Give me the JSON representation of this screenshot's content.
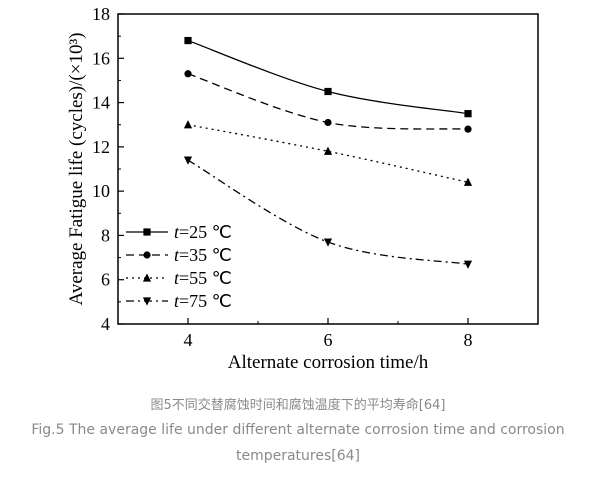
{
  "chart_data": {
    "type": "line",
    "xlabel": "Alternate corrosion time/h",
    "ylabel": "Average Fatigue life (cycles)/(×10³)",
    "xlim": [
      3,
      9
    ],
    "ylim": [
      4,
      18
    ],
    "x": [
      4,
      6,
      8
    ],
    "xticks": [
      4,
      6,
      8
    ],
    "yticks": [
      4,
      6,
      8,
      10,
      12,
      14,
      16,
      18
    ],
    "series": [
      {
        "name": "t=25 ℃",
        "marker": "square",
        "dash": "solid",
        "values": [
          16.8,
          14.5,
          13.5
        ]
      },
      {
        "name": "t=35 ℃",
        "marker": "circle",
        "dash": "dashed",
        "values": [
          15.3,
          13.1,
          12.8
        ]
      },
      {
        "name": "t=55 ℃",
        "marker": "triangle-up",
        "dash": "dotted",
        "values": [
          13.0,
          11.8,
          10.4
        ]
      },
      {
        "name": "t=75 ℃",
        "marker": "triangle-down",
        "dash": "dashdot",
        "values": [
          11.4,
          7.7,
          6.7
        ]
      }
    ],
    "legend_position": "lower-left"
  },
  "caption": {
    "cn": "图5不同交替腐蚀时间和腐蚀温度下的平均寿命[64]",
    "en_line1": "Fig.5 The average life under different alternate corrosion time and corrosion",
    "en_line2": "temperatures[64]"
  }
}
